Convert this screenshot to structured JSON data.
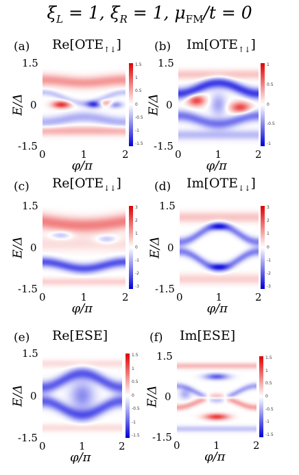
{
  "title": {
    "lhs": "ξ",
    "parts": [
      "ξ",
      "L",
      " = 1, ξ",
      "R",
      " = 1, μ",
      "FM",
      "/t = 0"
    ]
  },
  "common": {
    "y_tick_top": "1.5",
    "y_tick_mid": "0",
    "y_tick_bot": "-1.5",
    "x_ticks": [
      "0",
      "1",
      "2"
    ],
    "ylabel": "E/Δ",
    "xlabel": "φ/π"
  },
  "panels": [
    {
      "tag": "(a)",
      "title_main": "Re[OTE",
      "title_sub": "↑↓",
      "title_end": "]",
      "cbar": [
        "1.5",
        "1",
        "0.5",
        "0",
        "-0.5",
        "-1",
        "-1.5"
      ]
    },
    {
      "tag": "(b)",
      "title_main": "Im[OTE",
      "title_sub": "↑↓",
      "title_end": "]",
      "cbar": [
        "1",
        "0.5",
        "0",
        "-0.5",
        "-1"
      ]
    },
    {
      "tag": "(c)",
      "title_main": "Re[OTE",
      "title_sub": "↓↓",
      "title_end": "]",
      "cbar": [
        "3",
        "2",
        "1",
        "0",
        "-1",
        "-2",
        "-3"
      ]
    },
    {
      "tag": "(d)",
      "title_main": "Im[OTE",
      "title_sub": "↓↓",
      "title_end": "]",
      "cbar": [
        "3",
        "2",
        "1",
        "0",
        "-1",
        "-2",
        "-3"
      ]
    },
    {
      "tag": "(e)",
      "title_main": "Re[ESE",
      "title_sub": "",
      "title_end": "]",
      "cbar": [
        "1.5",
        "1",
        "0.5",
        "0",
        "-0.5",
        "-1",
        "-1.5"
      ]
    },
    {
      "tag": "(f)",
      "title_main": "Im[ESE",
      "title_sub": "",
      "title_end": "]",
      "cbar": [
        "1.5",
        "1",
        "0.5",
        "0",
        "-0.5",
        "-1",
        "-1.5"
      ]
    }
  ],
  "chart_data": [
    {
      "type": "heatmap",
      "title": "Re[OTE↑↓]",
      "xlabel": "φ/π",
      "ylabel": "E/Δ",
      "xlim": [
        0,
        2
      ],
      "ylim": [
        -1.5,
        1.5
      ],
      "colorbar_range": [
        -1.5,
        1.5
      ],
      "colormap": "blue-white-red"
    },
    {
      "type": "heatmap",
      "title": "Im[OTE↑↓]",
      "xlabel": "φ/π",
      "ylabel": "E/Δ",
      "xlim": [
        0,
        2
      ],
      "ylim": [
        -1.5,
        1.5
      ],
      "colorbar_range": [
        -1,
        1
      ],
      "colormap": "blue-white-red"
    },
    {
      "type": "heatmap",
      "title": "Re[OTE↓↓]",
      "xlabel": "φ/π",
      "ylabel": "E/Δ",
      "xlim": [
        0,
        2
      ],
      "ylim": [
        -1.5,
        1.5
      ],
      "colorbar_range": [
        -3,
        3
      ],
      "colormap": "blue-white-red"
    },
    {
      "type": "heatmap",
      "title": "Im[OTE↓↓]",
      "xlabel": "φ/π",
      "ylabel": "E/Δ",
      "xlim": [
        0,
        2
      ],
      "ylim": [
        -1.5,
        1.5
      ],
      "colorbar_range": [
        -3,
        3
      ],
      "colormap": "blue-white-red"
    },
    {
      "type": "heatmap",
      "title": "Re[ESE]",
      "xlabel": "φ/π",
      "ylabel": "E/Δ",
      "xlim": [
        0,
        2
      ],
      "ylim": [
        -1.5,
        1.5
      ],
      "colorbar_range": [
        -1.5,
        1.5
      ],
      "colormap": "blue-white-red"
    },
    {
      "type": "heatmap",
      "title": "Im[ESE]",
      "xlabel": "φ/π",
      "ylabel": "E/Δ",
      "xlim": [
        0,
        2
      ],
      "ylim": [
        -1.5,
        1.5
      ],
      "colorbar_range": [
        -1.5,
        1.5
      ],
      "colormap": "blue-white-red"
    }
  ]
}
